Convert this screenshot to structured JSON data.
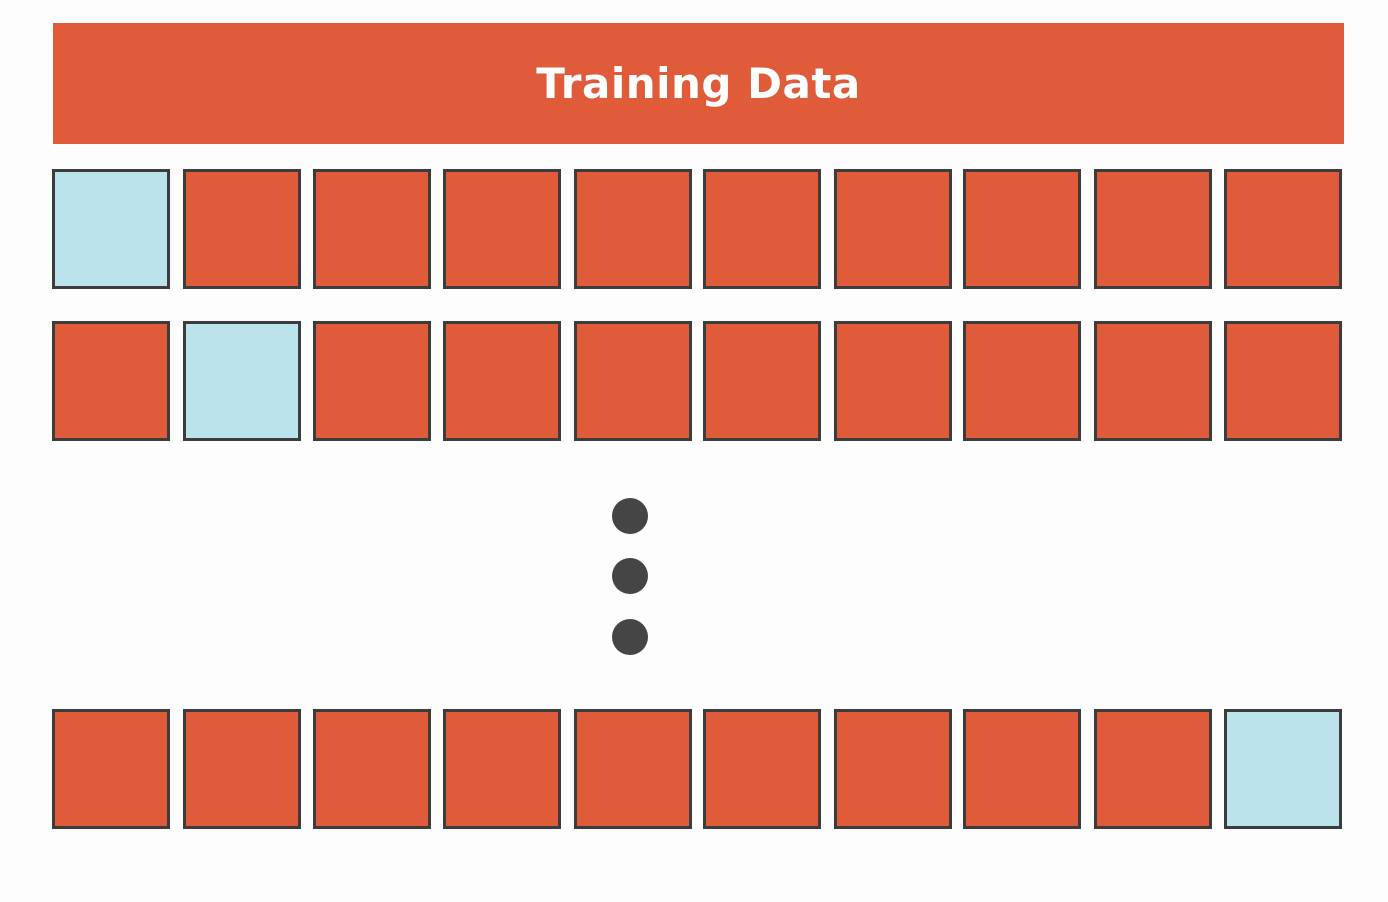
{
  "title": "Training Data",
  "colors": {
    "training_fold": "#df5b3a",
    "validation_fold": "#bae3eb",
    "border": "#3c3c3c",
    "dot": "#454545"
  },
  "folds_per_row": 10,
  "rows": [
    {
      "validation_index": 0
    },
    {
      "validation_index": 1
    },
    {
      "validation_index": 9
    }
  ],
  "ellipsis_dots": 3
}
